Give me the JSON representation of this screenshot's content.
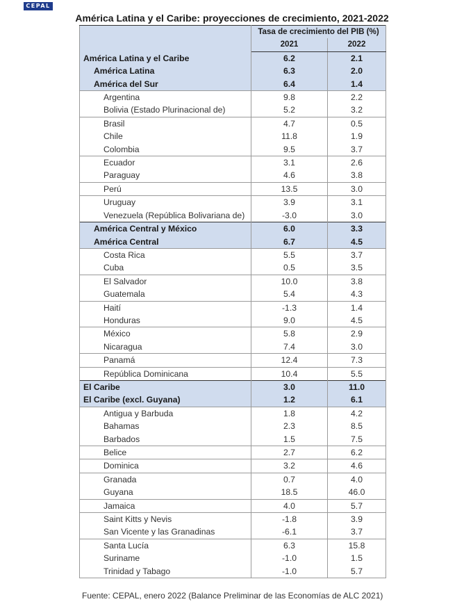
{
  "logo": "CEPAL",
  "title": "América Latina y el Caribe: proyecciones de crecimiento, 2021-2022",
  "header": {
    "group": "Tasa de crecimiento del PIB (%)",
    "year1": "2021",
    "year2": "2022"
  },
  "rows": [
    {
      "name": "América Latina y el Caribe",
      "v2021": "6.2",
      "v2022": "2.1",
      "kind": "region",
      "level": 0
    },
    {
      "name": "América Latina",
      "v2021": "6.3",
      "v2022": "2.0",
      "kind": "region",
      "level": 1
    },
    {
      "name": "América del Sur",
      "v2021": "6.4",
      "v2022": "1.4",
      "kind": "region",
      "level": 1
    },
    {
      "name": "Argentina",
      "v2021": "9.8",
      "v2022": "2.2",
      "kind": "country"
    },
    {
      "name": "Bolivia (Estado Plurinacional de)",
      "v2021": "5.2",
      "v2022": "3.2",
      "kind": "country"
    },
    {
      "name": "Brasil",
      "v2021": "4.7",
      "v2022": "0.5",
      "kind": "country"
    },
    {
      "name": "Chile",
      "v2021": "11.8",
      "v2022": "1.9",
      "kind": "country"
    },
    {
      "name": "Colombia",
      "v2021": "9.5",
      "v2022": "3.7",
      "kind": "country"
    },
    {
      "name": "Ecuador",
      "v2021": "3.1",
      "v2022": "2.6",
      "kind": "country"
    },
    {
      "name": "Paraguay",
      "v2021": "4.6",
      "v2022": "3.8",
      "kind": "country"
    },
    {
      "name": "Perú",
      "v2021": "13.5",
      "v2022": "3.0",
      "kind": "country"
    },
    {
      "name": "Uruguay",
      "v2021": "3.9",
      "v2022": "3.1",
      "kind": "country"
    },
    {
      "name": "Venezuela (República Bolivariana de)",
      "v2021": "-3.0",
      "v2022": "3.0",
      "kind": "country"
    },
    {
      "name": "América Central y México",
      "v2021": "6.0",
      "v2022": "3.3",
      "kind": "region",
      "level": 1
    },
    {
      "name": "América Central",
      "v2021": "6.7",
      "v2022": "4.5",
      "kind": "region",
      "level": 1
    },
    {
      "name": "Costa Rica",
      "v2021": "5.5",
      "v2022": "3.7",
      "kind": "country"
    },
    {
      "name": "Cuba",
      "v2021": "0.5",
      "v2022": "3.5",
      "kind": "country"
    },
    {
      "name": "El Salvador",
      "v2021": "10.0",
      "v2022": "3.8",
      "kind": "country"
    },
    {
      "name": "Guatemala",
      "v2021": "5.4",
      "v2022": "4.3",
      "kind": "country"
    },
    {
      "name": "Haití",
      "v2021": "-1.3",
      "v2022": "1.4",
      "kind": "country"
    },
    {
      "name": "Honduras",
      "v2021": "9.0",
      "v2022": "4.5",
      "kind": "country"
    },
    {
      "name": "México",
      "v2021": "5.8",
      "v2022": "2.9",
      "kind": "country"
    },
    {
      "name": "Nicaragua",
      "v2021": "7.4",
      "v2022": "3.0",
      "kind": "country"
    },
    {
      "name": "Panamá",
      "v2021": "12.4",
      "v2022": "7.3",
      "kind": "country"
    },
    {
      "name": "República Dominicana",
      "v2021": "10.4",
      "v2022": "5.5",
      "kind": "country"
    },
    {
      "name": "El Caribe",
      "v2021": "3.0",
      "v2022": "11.0",
      "kind": "region",
      "level": 0
    },
    {
      "name": "El Caribe (excl. Guyana)",
      "v2021": "1.2",
      "v2022": "6.1",
      "kind": "region",
      "level": 0
    },
    {
      "name": "Antigua y Barbuda",
      "v2021": "1.8",
      "v2022": "4.2",
      "kind": "country"
    },
    {
      "name": "Bahamas",
      "v2021": "2.3",
      "v2022": "8.5",
      "kind": "country"
    },
    {
      "name": "Barbados",
      "v2021": "1.5",
      "v2022": "7.5",
      "kind": "country"
    },
    {
      "name": "Belice",
      "v2021": "2.7",
      "v2022": "6.2",
      "kind": "country"
    },
    {
      "name": "Dominica",
      "v2021": "3.2",
      "v2022": "4.6",
      "kind": "country"
    },
    {
      "name": "Granada",
      "v2021": "0.7",
      "v2022": "4.0",
      "kind": "country"
    },
    {
      "name": "Guyana",
      "v2021": "18.5",
      "v2022": "46.0",
      "kind": "country"
    },
    {
      "name": "Jamaica",
      "v2021": "4.0",
      "v2022": "5.7",
      "kind": "country"
    },
    {
      "name": "Saint Kitts y Nevis",
      "v2021": "-1.8",
      "v2022": "3.9",
      "kind": "country"
    },
    {
      "name": "San Vicente y las Granadinas",
      "v2021": "-6.1",
      "v2022": "3.7",
      "kind": "country"
    },
    {
      "name": "Santa Lucía",
      "v2021": "6.3",
      "v2022": "15.8",
      "kind": "country"
    },
    {
      "name": "Suriname",
      "v2021": "-1.0",
      "v2022": "1.5",
      "kind": "country"
    },
    {
      "name": "Trinidad y Tabago",
      "v2021": "-1.0",
      "v2022": "5.7",
      "kind": "country"
    }
  ],
  "source": "Fuente: CEPAL, enero 2022 (Balance Preliminar de las Economías de ALC 2021)"
}
